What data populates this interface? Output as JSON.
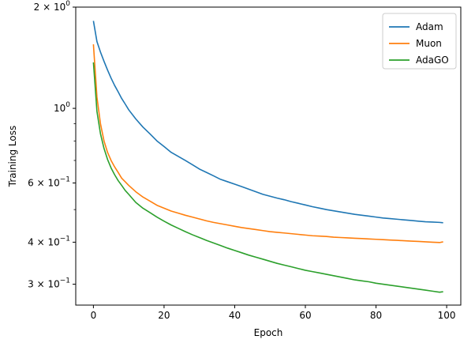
{
  "chart_data": {
    "type": "line",
    "title": "",
    "xlabel": "Epoch",
    "ylabel": "Training Loss",
    "xlim": [
      -5,
      104
    ],
    "ylim": [
      0.26,
      2.0
    ],
    "yscale": "log",
    "grid": false,
    "legend_position": "top-right",
    "x_ticks": [
      0,
      20,
      40,
      60,
      80,
      100
    ],
    "x_tick_labels": [
      "0",
      "20",
      "40",
      "60",
      "80",
      "100"
    ],
    "y_major_ticks": [
      {
        "value": 2.0,
        "base": "2 × 10",
        "exp": "0"
      },
      {
        "value": 1.0,
        "base": "10",
        "exp": "0"
      },
      {
        "value": 0.6,
        "base": "6 × 10",
        "exp": "−1"
      },
      {
        "value": 0.4,
        "base": "4 × 10",
        "exp": "−1"
      },
      {
        "value": 0.3,
        "base": "3 × 10",
        "exp": "−1"
      }
    ],
    "y_minor_ticks": [
      0.5,
      0.7,
      0.8,
      0.9
    ],
    "series": [
      {
        "name": "Adam",
        "color": "#1f77b4",
        "x": [
          0,
          1,
          2,
          3,
          4,
          5,
          6,
          7,
          8,
          9,
          10,
          12,
          14,
          16,
          18,
          20,
          22,
          24,
          26,
          28,
          30,
          32,
          34,
          36,
          38,
          40,
          42,
          44,
          46,
          48,
          50,
          52,
          54,
          56,
          58,
          60,
          62,
          64,
          66,
          68,
          70,
          72,
          74,
          76,
          78,
          80,
          82,
          84,
          86,
          88,
          90,
          92,
          94,
          96,
          98,
          99
        ],
        "y": [
          1.82,
          1.58,
          1.47,
          1.38,
          1.3,
          1.23,
          1.17,
          1.12,
          1.07,
          1.03,
          0.99,
          0.93,
          0.88,
          0.84,
          0.8,
          0.77,
          0.74,
          0.72,
          0.7,
          0.68,
          0.66,
          0.645,
          0.63,
          0.615,
          0.605,
          0.595,
          0.585,
          0.575,
          0.565,
          0.555,
          0.548,
          0.541,
          0.535,
          0.528,
          0.522,
          0.516,
          0.51,
          0.505,
          0.5,
          0.496,
          0.492,
          0.488,
          0.484,
          0.481,
          0.478,
          0.475,
          0.472,
          0.47,
          0.468,
          0.466,
          0.464,
          0.462,
          0.46,
          0.459,
          0.458,
          0.457
        ]
      },
      {
        "name": "Muon",
        "color": "#ff7f0e",
        "x": [
          0,
          1,
          2,
          3,
          4,
          5,
          6,
          7,
          8,
          9,
          10,
          12,
          14,
          16,
          18,
          20,
          22,
          24,
          26,
          28,
          30,
          32,
          34,
          36,
          38,
          40,
          42,
          44,
          46,
          48,
          50,
          52,
          54,
          56,
          58,
          60,
          62,
          64,
          66,
          68,
          70,
          72,
          74,
          76,
          78,
          80,
          82,
          84,
          86,
          88,
          90,
          92,
          94,
          96,
          98,
          99
        ],
        "y": [
          1.55,
          1.08,
          0.9,
          0.8,
          0.74,
          0.7,
          0.67,
          0.645,
          0.62,
          0.605,
          0.59,
          0.565,
          0.545,
          0.53,
          0.515,
          0.505,
          0.495,
          0.488,
          0.481,
          0.475,
          0.469,
          0.463,
          0.458,
          0.454,
          0.45,
          0.446,
          0.442,
          0.439,
          0.436,
          0.433,
          0.43,
          0.428,
          0.426,
          0.424,
          0.422,
          0.42,
          0.418,
          0.417,
          0.416,
          0.414,
          0.413,
          0.412,
          0.411,
          0.41,
          0.409,
          0.408,
          0.407,
          0.406,
          0.405,
          0.404,
          0.403,
          0.402,
          0.401,
          0.4,
          0.399,
          0.401
        ]
      },
      {
        "name": "AdaGO",
        "color": "#2ca02c",
        "x": [
          0,
          1,
          2,
          3,
          4,
          5,
          6,
          7,
          8,
          9,
          10,
          12,
          14,
          16,
          18,
          20,
          22,
          24,
          26,
          28,
          30,
          32,
          34,
          36,
          38,
          40,
          42,
          44,
          46,
          48,
          50,
          52,
          54,
          56,
          58,
          60,
          62,
          64,
          66,
          68,
          70,
          72,
          74,
          76,
          78,
          80,
          82,
          84,
          86,
          88,
          90,
          92,
          94,
          96,
          98,
          99
        ],
        "y": [
          1.37,
          0.98,
          0.84,
          0.76,
          0.705,
          0.665,
          0.635,
          0.61,
          0.59,
          0.57,
          0.555,
          0.525,
          0.505,
          0.49,
          0.475,
          0.462,
          0.45,
          0.44,
          0.43,
          0.421,
          0.413,
          0.405,
          0.398,
          0.391,
          0.384,
          0.378,
          0.372,
          0.366,
          0.361,
          0.356,
          0.351,
          0.346,
          0.342,
          0.338,
          0.334,
          0.33,
          0.327,
          0.324,
          0.321,
          0.318,
          0.315,
          0.312,
          0.309,
          0.307,
          0.305,
          0.302,
          0.3,
          0.298,
          0.296,
          0.294,
          0.292,
          0.29,
          0.288,
          0.286,
          0.284,
          0.285
        ]
      }
    ]
  }
}
